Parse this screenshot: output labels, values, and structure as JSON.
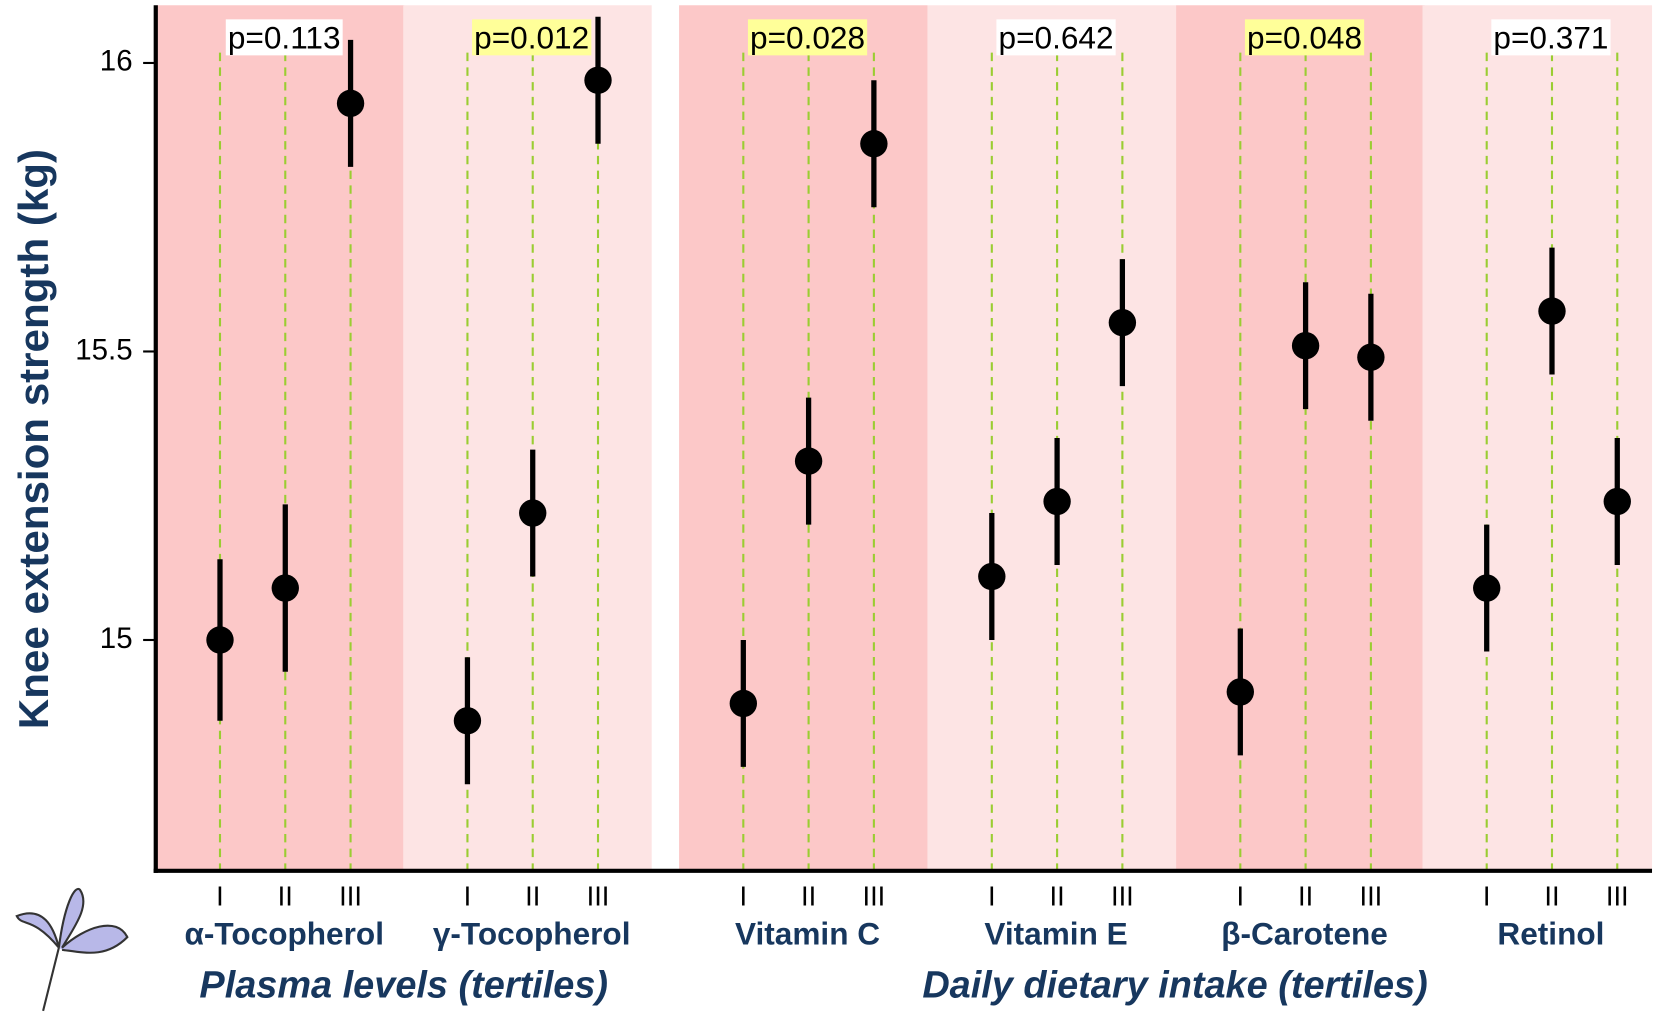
{
  "chart_data": {
    "type": "dot_errorbar",
    "y_label": "Knee extension strength (kg)",
    "ylim": [
      14.6,
      16.1
    ],
    "yticks": [
      15,
      15.5,
      16
    ],
    "categories": [
      "I",
      "II",
      "III"
    ],
    "point_color": "#000000",
    "guide_color": "#9acd32",
    "groups": [
      {
        "name": "Plasma levels (tertiles)",
        "series_count": 2
      },
      {
        "name": "Daily dietary intake (tertiles)",
        "series_count": 4
      }
    ],
    "series": [
      {
        "name": "α-Tocopherol",
        "annotation": "p=0.113",
        "annotation_highlight": false,
        "band_color": "#fcc8c8",
        "values": [
          15.0,
          15.09,
          15.93
        ],
        "errors": [
          0.14,
          0.145,
          0.11
        ]
      },
      {
        "name": "γ-Tocopherol",
        "annotation": "p=0.012",
        "annotation_highlight": true,
        "band_color": "#fde4e4",
        "values": [
          14.86,
          15.22,
          15.97
        ],
        "errors": [
          0.11,
          0.11,
          0.11
        ]
      },
      {
        "name": "Vitamin C",
        "annotation": "p=0.028",
        "annotation_highlight": true,
        "band_color": "#fcc8c8",
        "values": [
          14.89,
          15.31,
          15.86
        ],
        "errors": [
          0.11,
          0.11,
          0.11
        ]
      },
      {
        "name": "Vitamin E",
        "annotation": "p=0.642",
        "annotation_highlight": false,
        "band_color": "#fde4e4",
        "values": [
          15.11,
          15.24,
          15.55
        ],
        "errors": [
          0.11,
          0.11,
          0.11
        ]
      },
      {
        "name": "β-Carotene",
        "annotation": "p=0.048",
        "annotation_highlight": true,
        "band_color": "#fcc8c8",
        "values": [
          14.91,
          15.51,
          15.49
        ],
        "errors": [
          0.11,
          0.11,
          0.11
        ]
      },
      {
        "name": "Retinol",
        "annotation": "p=0.371",
        "annotation_highlight": false,
        "band_color": "#fde4e4",
        "values": [
          15.09,
          15.57,
          15.24
        ],
        "errors": [
          0.11,
          0.11,
          0.11
        ]
      }
    ]
  }
}
